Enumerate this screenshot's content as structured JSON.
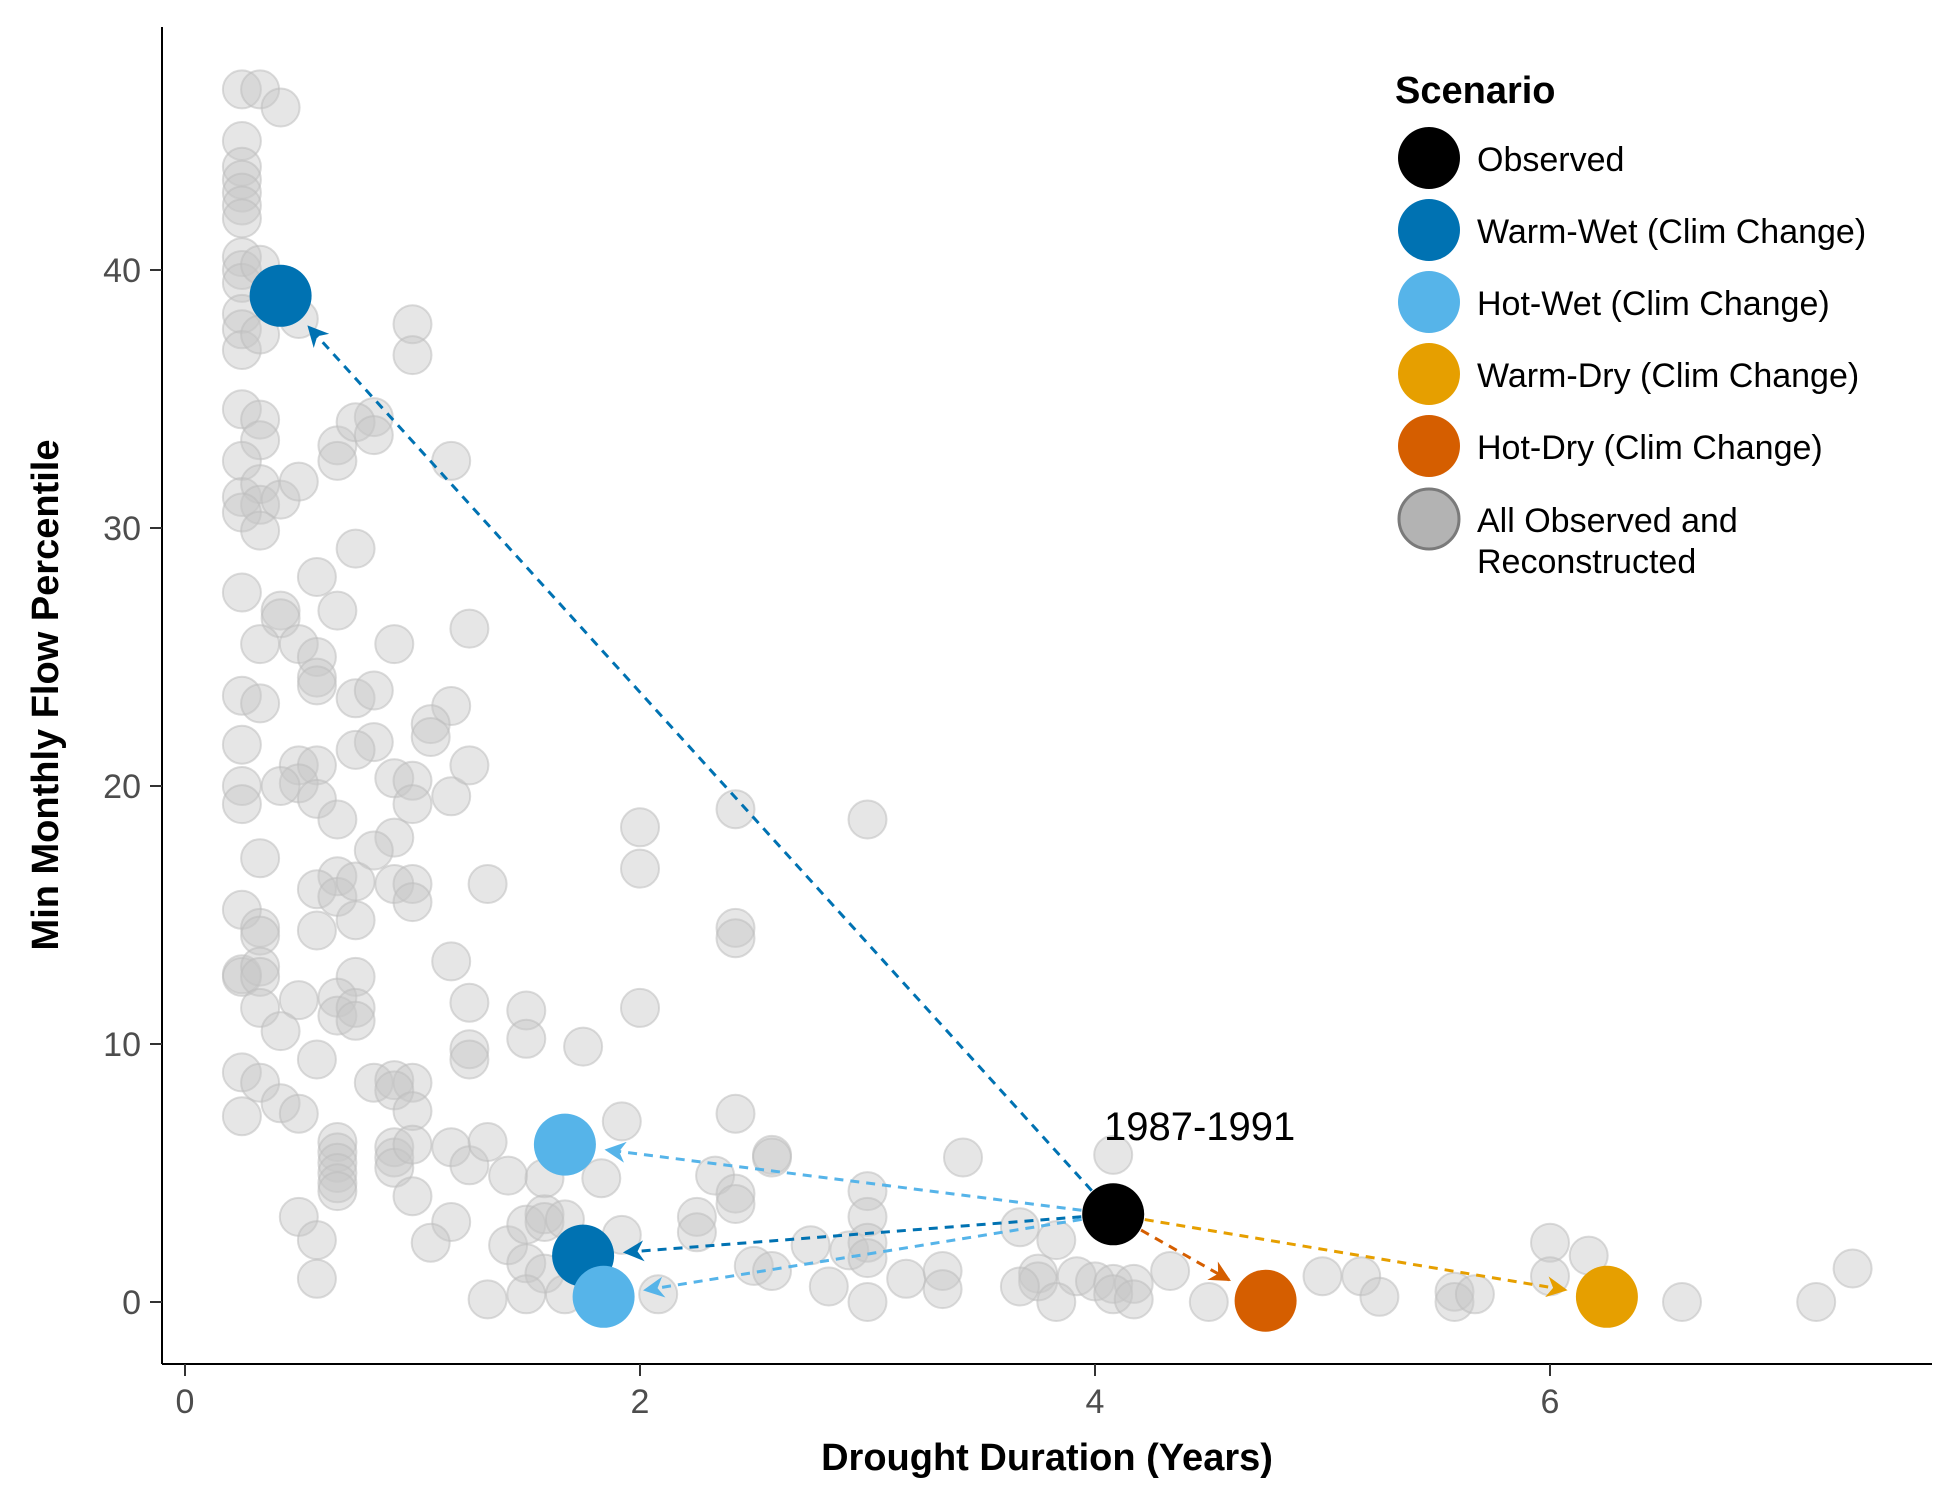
{
  "chart_data": {
    "type": "scatter",
    "xlabel": "Drought Duration (Years)",
    "ylabel": "Min Monthly Flow Percentile",
    "xlim": [
      -0.1,
      7.7
    ],
    "ylim": [
      -2.3,
      49
    ],
    "x_ticks": [
      0,
      2,
      4,
      6
    ],
    "x_tick_labels": [
      "0",
      "2",
      "4",
      "6"
    ],
    "y_ticks": [
      0,
      10,
      20,
      30,
      40
    ],
    "y_tick_labels": [
      "0",
      "10",
      "20",
      "30",
      "40"
    ],
    "grid": false,
    "legend": {
      "title": "Scenario",
      "position": "top-right",
      "entries": [
        {
          "label": "Observed",
          "color": "#000000"
        },
        {
          "label": "Warm-Wet (Clim Change)",
          "color": "#0072b2"
        },
        {
          "label": "Hot-Wet (Clim Change)",
          "color": "#56b4e9"
        },
        {
          "label": "Warm-Dry (Clim Change)",
          "color": "#e69f00"
        },
        {
          "label": "Hot-Dry (Clim Change)",
          "color": "#d55e00"
        },
        {
          "label": "All Observed and",
          "label2": "Reconstructed",
          "color": "#b3b3b3"
        }
      ]
    },
    "annotation": {
      "text": "1987-1991",
      "x": 4.0,
      "y": 6.5
    },
    "observed": {
      "x": 4.08,
      "y": 3.4
    },
    "scenarios": [
      {
        "name": "Warm-Wet (Clim Change)",
        "color": "#0072b2",
        "points": [
          {
            "x": 0.42,
            "y": 39.0
          },
          {
            "x": 1.75,
            "y": 1.8
          }
        ]
      },
      {
        "name": "Hot-Wet (Clim Change)",
        "color": "#56b4e9",
        "points": [
          {
            "x": 1.67,
            "y": 6.1
          },
          {
            "x": 1.84,
            "y": 0.2
          }
        ]
      },
      {
        "name": "Warm-Dry (Clim Change)",
        "color": "#e69f00",
        "points": [
          {
            "x": 6.25,
            "y": 0.2
          }
        ]
      },
      {
        "name": "Hot-Dry (Clim Change)",
        "color": "#d55e00",
        "points": [
          {
            "x": 4.75,
            "y": 0.05
          }
        ]
      }
    ],
    "background_points": [
      [
        0.25,
        47
      ],
      [
        0.33,
        47
      ],
      [
        0.42,
        46.3
      ],
      [
        0.25,
        45
      ],
      [
        0.25,
        44
      ],
      [
        0.25,
        43.5
      ],
      [
        0.25,
        43
      ],
      [
        0.25,
        42.5
      ],
      [
        0.25,
        42
      ],
      [
        0.25,
        40.5
      ],
      [
        0.25,
        40
      ],
      [
        0.25,
        39.5
      ],
      [
        0.33,
        40.2
      ],
      [
        0.25,
        38.3
      ],
      [
        0.25,
        37.7
      ],
      [
        0.25,
        36.9
      ],
      [
        0.33,
        37.5
      ],
      [
        0.5,
        38.1
      ],
      [
        1.0,
        37.9
      ],
      [
        1.0,
        36.7
      ],
      [
        0.25,
        34.6
      ],
      [
        0.33,
        34.2
      ],
      [
        0.33,
        33.4
      ],
      [
        0.67,
        33.2
      ],
      [
        0.67,
        32.6
      ],
      [
        0.83,
        34.3
      ],
      [
        0.75,
        34.1
      ],
      [
        0.83,
        33.6
      ],
      [
        1.17,
        32.6
      ],
      [
        0.25,
        32.6
      ],
      [
        0.25,
        31.2
      ],
      [
        0.33,
        31.7
      ],
      [
        0.33,
        30.9
      ],
      [
        0.42,
        31.1
      ],
      [
        0.5,
        31.8
      ],
      [
        0.25,
        30.6
      ],
      [
        0.33,
        29.9
      ],
      [
        0.75,
        29.2
      ],
      [
        0.25,
        27.5
      ],
      [
        0.42,
        26.8
      ],
      [
        0.42,
        26.5
      ],
      [
        0.58,
        28.1
      ],
      [
        0.67,
        26.8
      ],
      [
        0.33,
        25.5
      ],
      [
        0.5,
        25.5
      ],
      [
        0.58,
        25
      ],
      [
        0.58,
        24.2
      ],
      [
        0.58,
        23.9
      ],
      [
        0.92,
        25.5
      ],
      [
        1.25,
        26.1
      ],
      [
        0.25,
        23.5
      ],
      [
        0.33,
        23.2
      ],
      [
        0.75,
        23.4
      ],
      [
        0.83,
        23.7
      ],
      [
        1.17,
        23.1
      ],
      [
        1.08,
        22.4
      ],
      [
        1.08,
        21.9
      ],
      [
        0.83,
        21.7
      ],
      [
        0.75,
        21.4
      ],
      [
        0.25,
        21.6
      ],
      [
        0.5,
        20.8
      ],
      [
        0.58,
        20.8
      ],
      [
        0.5,
        20.1
      ],
      [
        0.42,
        20
      ],
      [
        0.25,
        20
      ],
      [
        0.25,
        19.3
      ],
      [
        0.58,
        19.5
      ],
      [
        0.67,
        18.7
      ],
      [
        0.92,
        20.3
      ],
      [
        1.0,
        20.2
      ],
      [
        1.0,
        19.3
      ],
      [
        1.17,
        19.6
      ],
      [
        1.25,
        20.8
      ],
      [
        0.92,
        18
      ],
      [
        0.83,
        17.5
      ],
      [
        0.33,
        17.2
      ],
      [
        0.67,
        16.5
      ],
      [
        0.58,
        16
      ],
      [
        0.67,
        15.7
      ],
      [
        0.75,
        16.3
      ],
      [
        0.92,
        16.2
      ],
      [
        1.0,
        16.2
      ],
      [
        1.0,
        15.5
      ],
      [
        1.33,
        16.2
      ],
      [
        0.25,
        15.2
      ],
      [
        0.33,
        14.5
      ],
      [
        0.33,
        14.2
      ],
      [
        0.58,
        14.4
      ],
      [
        0.75,
        14.8
      ],
      [
        2.0,
        18.4
      ],
      [
        2.0,
        16.8
      ],
      [
        2.42,
        19.1
      ],
      [
        3.0,
        18.7
      ],
      [
        2.42,
        14.5
      ],
      [
        2.42,
        14.1
      ],
      [
        0.25,
        12.7
      ],
      [
        0.25,
        12.6
      ],
      [
        0.33,
        13
      ],
      [
        0.33,
        12.6
      ],
      [
        0.75,
        12.6
      ],
      [
        1.17,
        13.2
      ],
      [
        0.33,
        11.4
      ],
      [
        0.5,
        11.7
      ],
      [
        0.67,
        11.8
      ],
      [
        0.67,
        11.1
      ],
      [
        0.75,
        11.4
      ],
      [
        0.75,
        10.9
      ],
      [
        0.42,
        10.5
      ],
      [
        1.25,
        11.6
      ],
      [
        1.5,
        11.3
      ],
      [
        1.5,
        10.2
      ],
      [
        1.75,
        9.9
      ],
      [
        2.0,
        11.4
      ],
      [
        1.25,
        9.8
      ],
      [
        1.25,
        9.4
      ],
      [
        0.58,
        9.4
      ],
      [
        0.25,
        8.9
      ],
      [
        0.33,
        8.5
      ],
      [
        0.83,
        8.5
      ],
      [
        0.92,
        8.6
      ],
      [
        1.0,
        8.5
      ],
      [
        0.92,
        8.2
      ],
      [
        1.0,
        7.4
      ],
      [
        0.42,
        7.7
      ],
      [
        0.5,
        7.3
      ],
      [
        0.25,
        7.2
      ],
      [
        0.67,
        6.2
      ],
      [
        0.67,
        5.8
      ],
      [
        0.67,
        5.4
      ],
      [
        0.67,
        5
      ],
      [
        0.67,
        4.6
      ],
      [
        0.67,
        4.3
      ],
      [
        0.92,
        6
      ],
      [
        0.92,
        5.6
      ],
      [
        0.92,
        5.2
      ],
      [
        1.0,
        6.1
      ],
      [
        1.0,
        4.1
      ],
      [
        1.17,
        6
      ],
      [
        1.25,
        5.3
      ],
      [
        1.33,
        6.2
      ],
      [
        1.42,
        4.9
      ],
      [
        1.58,
        4.8
      ],
      [
        1.92,
        7
      ],
      [
        1.83,
        4.8
      ],
      [
        2.42,
        7.3
      ],
      [
        2.33,
        4.9
      ],
      [
        2.42,
        4.2
      ],
      [
        2.42,
        3.8
      ],
      [
        2.58,
        5.7
      ],
      [
        2.58,
        5.6
      ],
      [
        3.0,
        4.3
      ],
      [
        3.0,
        3.3
      ],
      [
        3.42,
        5.6
      ],
      [
        4.08,
        5.7
      ],
      [
        0.5,
        3.3
      ],
      [
        0.58,
        2.4
      ],
      [
        0.58,
        0.9
      ],
      [
        1.17,
        3.1
      ],
      [
        1.08,
        2.3
      ],
      [
        1.42,
        2.2
      ],
      [
        1.5,
        3
      ],
      [
        1.58,
        3.4
      ],
      [
        1.58,
        3.1
      ],
      [
        1.67,
        3.2
      ],
      [
        1.5,
        1.5
      ],
      [
        1.58,
        1.1
      ],
      [
        1.92,
        2.6
      ],
      [
        2.25,
        3.3
      ],
      [
        2.25,
        2.7
      ],
      [
        2.5,
        1.4
      ],
      [
        2.58,
        1.2
      ],
      [
        2.75,
        2.2
      ],
      [
        2.92,
        2.0
      ],
      [
        3.0,
        2.3
      ],
      [
        3.0,
        1.7
      ],
      [
        2.83,
        0.6
      ],
      [
        3.17,
        0.9
      ],
      [
        3.33,
        1.2
      ],
      [
        3.33,
        0.5
      ],
      [
        3.67,
        2.9
      ],
      [
        3.83,
        2.4
      ],
      [
        3.75,
        1.1
      ],
      [
        3.75,
        0.8
      ],
      [
        3.67,
        0.6
      ],
      [
        3.92,
        1.0
      ],
      [
        4.0,
        0.8
      ],
      [
        4.08,
        0.7
      ],
      [
        4.17,
        0.7
      ],
      [
        4.08,
        0.3
      ],
      [
        4.17,
        0.1
      ],
      [
        3.83,
        0.0
      ],
      [
        4.33,
        1.2
      ],
      [
        4.5,
        0.0
      ],
      [
        5.0,
        1.0
      ],
      [
        5.17,
        1.0
      ],
      [
        5.25,
        0.2
      ],
      [
        5.58,
        0.4
      ],
      [
        5.58,
        0.0
      ],
      [
        5.67,
        0.3
      ],
      [
        6.0,
        2.3
      ],
      [
        6.17,
        1.8
      ],
      [
        6.0,
        1.0
      ],
      [
        6.58,
        0.0
      ],
      [
        7.17,
        0.0
      ],
      [
        7.33,
        1.3
      ],
      [
        1.33,
        0.1
      ],
      [
        1.5,
        0.3
      ],
      [
        2.08,
        0.3
      ],
      [
        1.67,
        0.3
      ],
      [
        3.0,
        0.0
      ]
    ]
  }
}
